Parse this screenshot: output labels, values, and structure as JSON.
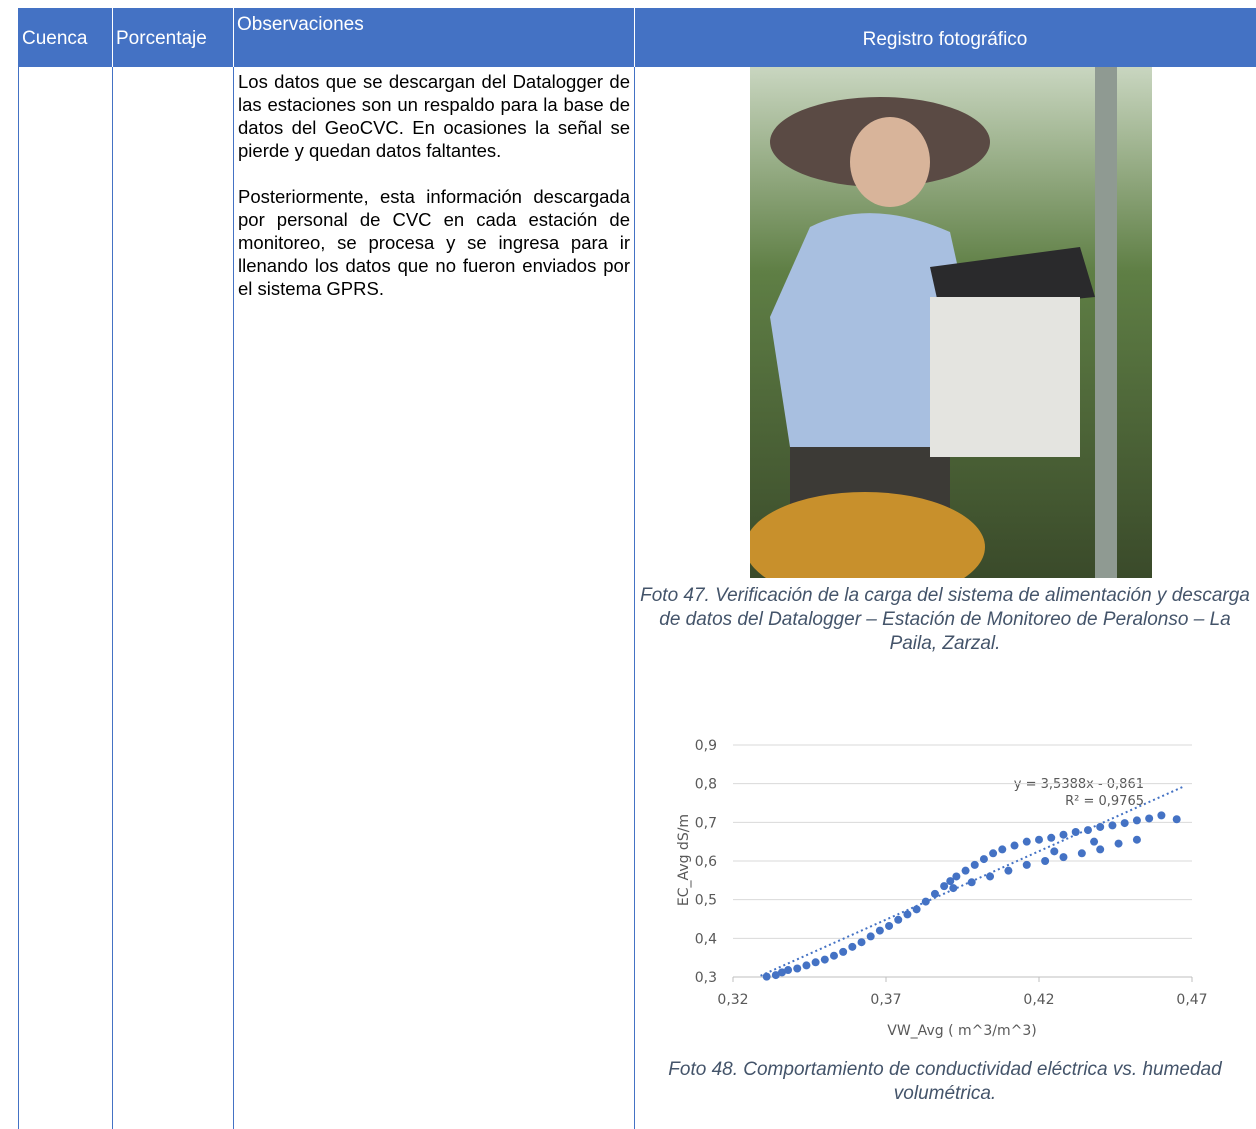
{
  "table": {
    "headers": [
      "Cuenca",
      "Porcentaje",
      "Observaciones",
      "Registro fotográfico"
    ],
    "observaciones": [
      "Los datos que se descargan del Datalogger de las estaciones son un respaldo para la base de datos del GeoCVC. En ocasiones la señal se pierde y quedan datos faltantes.",
      "Posteriormente, esta información descargada por personal de CVC en cada estación de monitoreo, se procesa y se ingresa para ir llenando los datos que no fueron enviados por el sistema GPRS."
    ],
    "photo_caption": "Foto 47. Verificación de la carga del sistema de alimentación y descarga de datos del Datalogger – Estación de Monitoreo de Peralonso – La Paila, Zarzal.",
    "chart_caption": "Foto 48. Comportamiento de conductividad eléctrica vs. humedad volumétrica."
  },
  "chart_data": {
    "type": "scatter",
    "x_label": "VW_Avg   ( m^3/m^3)",
    "y_label": "EC_Avg dS/m",
    "color": "#4472c4",
    "grid": true,
    "xlim": [
      0.32,
      0.47
    ],
    "ylim": [
      0.3,
      0.9
    ],
    "xticks": [
      {
        "value": 0.32,
        "label": "0,32"
      },
      {
        "value": 0.37,
        "label": "0,37"
      },
      {
        "value": 0.42,
        "label": "0,42"
      },
      {
        "value": 0.47,
        "label": "0,47"
      }
    ],
    "yticks": [
      {
        "value": 0.3,
        "label": "0,3"
      },
      {
        "value": 0.4,
        "label": "0,4"
      },
      {
        "value": 0.5,
        "label": "0,5"
      },
      {
        "value": 0.6,
        "label": "0,6"
      },
      {
        "value": 0.7,
        "label": "0,7"
      },
      {
        "value": 0.8,
        "label": "0,8"
      },
      {
        "value": 0.9,
        "label": "0,9"
      }
    ],
    "x": [
      0.331,
      0.334,
      0.336,
      0.338,
      0.341,
      0.344,
      0.347,
      0.35,
      0.353,
      0.356,
      0.359,
      0.362,
      0.365,
      0.368,
      0.371,
      0.374,
      0.377,
      0.38,
      0.383,
      0.386,
      0.389,
      0.391,
      0.393,
      0.396,
      0.399,
      0.402,
      0.405,
      0.408,
      0.412,
      0.416,
      0.42,
      0.424,
      0.428,
      0.432,
      0.436,
      0.44,
      0.444,
      0.448,
      0.452,
      0.456,
      0.46,
      0.465,
      0.392,
      0.398,
      0.404,
      0.41,
      0.416,
      0.422,
      0.428,
      0.434,
      0.44,
      0.446,
      0.452,
      0.438,
      0.425
    ],
    "values": [
      0.301,
      0.305,
      0.312,
      0.318,
      0.322,
      0.33,
      0.338,
      0.345,
      0.355,
      0.365,
      0.378,
      0.39,
      0.405,
      0.42,
      0.432,
      0.448,
      0.462,
      0.475,
      0.495,
      0.515,
      0.535,
      0.548,
      0.56,
      0.575,
      0.59,
      0.605,
      0.62,
      0.63,
      0.64,
      0.65,
      0.655,
      0.66,
      0.668,
      0.675,
      0.68,
      0.688,
      0.692,
      0.698,
      0.705,
      0.71,
      0.718,
      0.708,
      0.53,
      0.545,
      0.56,
      0.575,
      0.59,
      0.6,
      0.61,
      0.62,
      0.63,
      0.645,
      0.655,
      0.65,
      0.625
    ],
    "trendline": {
      "equation": "y = 3,5388x - 0,861",
      "r2": "R² = 0,9765",
      "slope": 3.5388,
      "intercept": -0.861,
      "x": [
        0.329,
        0.467
      ]
    }
  }
}
